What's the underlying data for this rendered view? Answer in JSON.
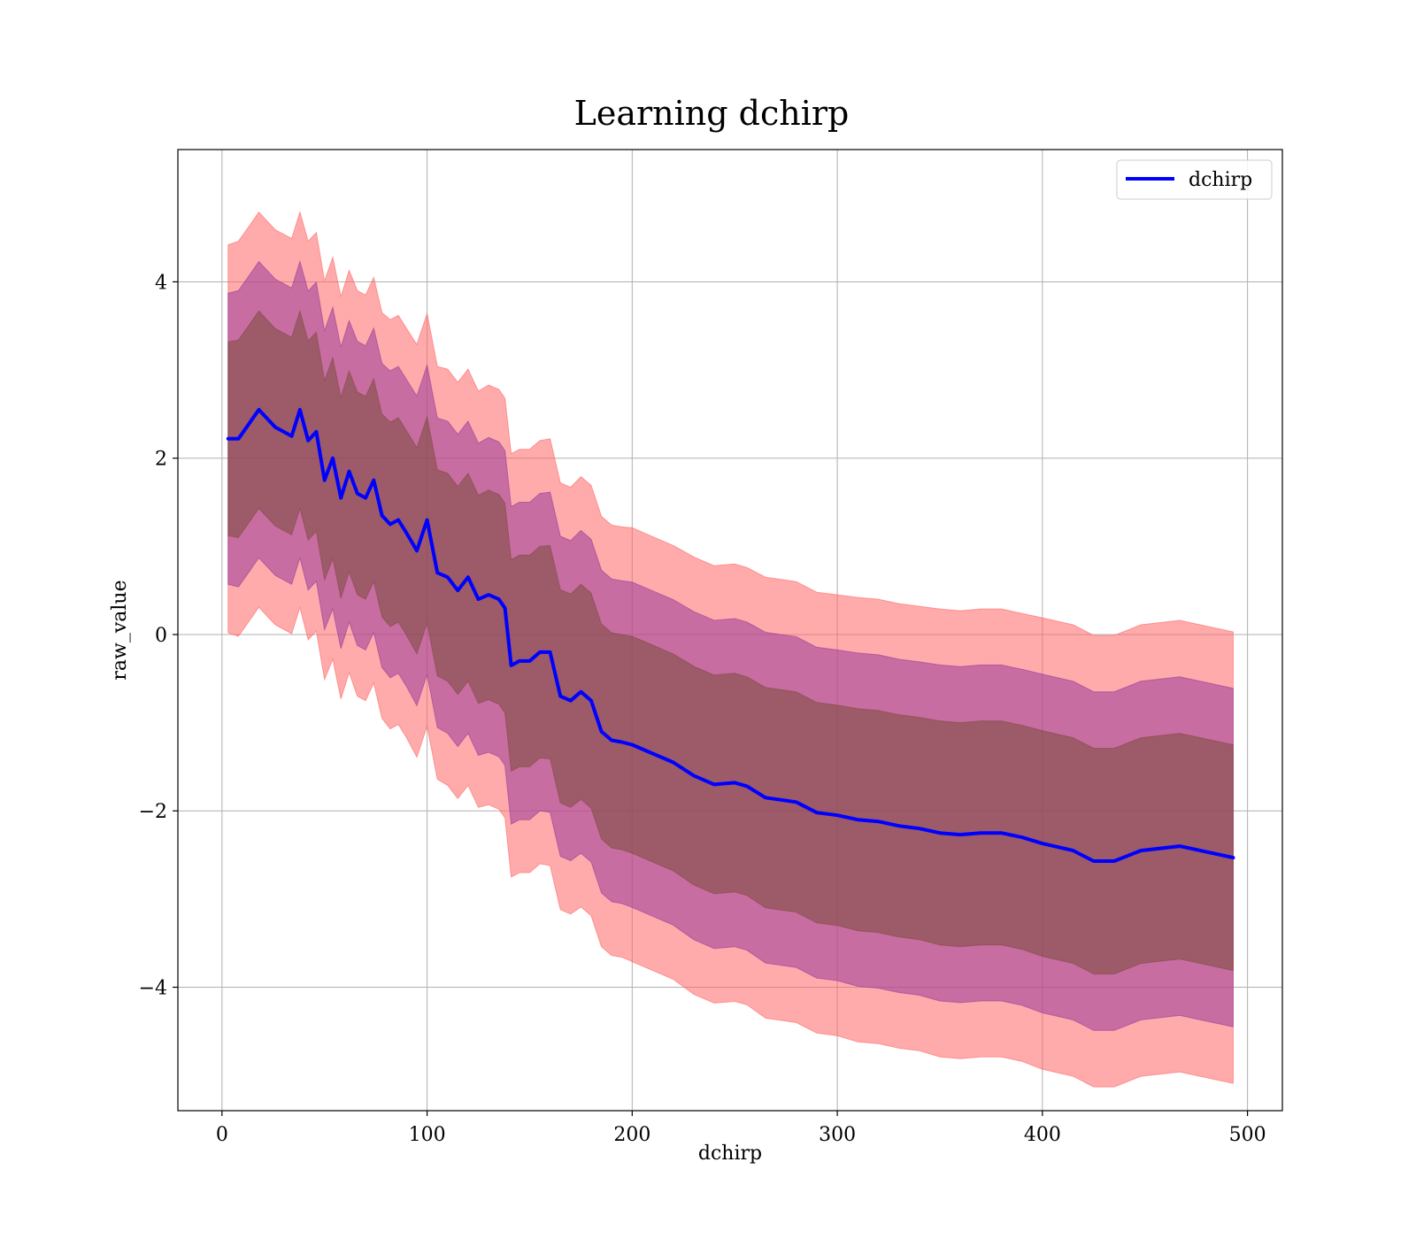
{
  "chart_data": {
    "type": "line",
    "title": "Learning dchirp",
    "xlabel": "dchirp",
    "ylabel": "raw_value",
    "xlim": [
      -21.5,
      517
    ],
    "ylim": [
      -5.4,
      5.5
    ],
    "xticks": [
      0,
      100,
      200,
      300,
      400,
      500
    ],
    "yticks": [
      -4,
      -2,
      0,
      2,
      4
    ],
    "xtick_labels": [
      "0",
      "100",
      "200",
      "300",
      "400",
      "500"
    ],
    "ytick_labels": [
      "−4",
      "−2",
      "0",
      "2",
      "4"
    ],
    "grid": true,
    "legend_position": "top-right",
    "colors": {
      "line": "#0000ff",
      "band_outer": "#ff6666",
      "band_mid": "#9b3a9b",
      "band_inner": "#7a4a3a"
    },
    "series": [
      {
        "name": "dchirp",
        "x": [
          3,
          8,
          12,
          18,
          22,
          26,
          30,
          34,
          38,
          42,
          46,
          50,
          54,
          58,
          62,
          66,
          70,
          74,
          78,
          82,
          86,
          90,
          95,
          100,
          105,
          110,
          115,
          120,
          125,
          130,
          135,
          138,
          141,
          145,
          150,
          155,
          160,
          165,
          170,
          175,
          180,
          185,
          190,
          195,
          200,
          210,
          220,
          230,
          240,
          250,
          256,
          265,
          280,
          290,
          300,
          310,
          320,
          330,
          340,
          350,
          360,
          370,
          380,
          390,
          400,
          415,
          425,
          435,
          448,
          467,
          493
        ],
        "y": [
          2.22,
          2.22,
          2.35,
          2.55,
          2.45,
          2.35,
          2.3,
          2.25,
          2.55,
          2.2,
          2.3,
          1.75,
          2.0,
          1.55,
          1.85,
          1.6,
          1.55,
          1.75,
          1.35,
          1.25,
          1.3,
          1.15,
          0.95,
          1.3,
          0.7,
          0.65,
          0.5,
          0.65,
          0.4,
          0.45,
          0.4,
          0.3,
          -0.35,
          -0.3,
          -0.3,
          -0.2,
          -0.2,
          -0.7,
          -0.75,
          -0.65,
          -0.75,
          -1.1,
          -1.2,
          -1.22,
          -1.25,
          -1.35,
          -1.45,
          -1.6,
          -1.7,
          -1.68,
          -1.72,
          -1.85,
          -1.9,
          -2.02,
          -2.05,
          -2.1,
          -2.12,
          -2.17,
          -2.2,
          -2.25,
          -2.27,
          -2.25,
          -2.25,
          -2.3,
          -2.37,
          -2.45,
          -2.57,
          -2.57,
          -2.45,
          -2.4,
          -2.53
        ],
        "std": [
          1.1,
          1.12,
          1.12,
          1.12,
          1.12,
          1.12,
          1.12,
          1.12,
          1.12,
          1.13,
          1.13,
          1.13,
          1.14,
          1.14,
          1.14,
          1.15,
          1.15,
          1.15,
          1.15,
          1.16,
          1.16,
          1.16,
          1.17,
          1.17,
          1.17,
          1.18,
          1.18,
          1.18,
          1.18,
          1.19,
          1.19,
          1.19,
          1.2,
          1.2,
          1.2,
          1.2,
          1.21,
          1.21,
          1.21,
          1.22,
          1.22,
          1.22,
          1.22,
          1.22,
          1.23,
          1.23,
          1.23,
          1.24,
          1.24,
          1.24,
          1.24,
          1.25,
          1.25,
          1.25,
          1.25,
          1.26,
          1.26,
          1.26,
          1.26,
          1.27,
          1.27,
          1.27,
          1.27,
          1.27,
          1.28,
          1.28,
          1.28,
          1.28,
          1.28,
          1.28,
          1.28
        ]
      }
    ]
  }
}
